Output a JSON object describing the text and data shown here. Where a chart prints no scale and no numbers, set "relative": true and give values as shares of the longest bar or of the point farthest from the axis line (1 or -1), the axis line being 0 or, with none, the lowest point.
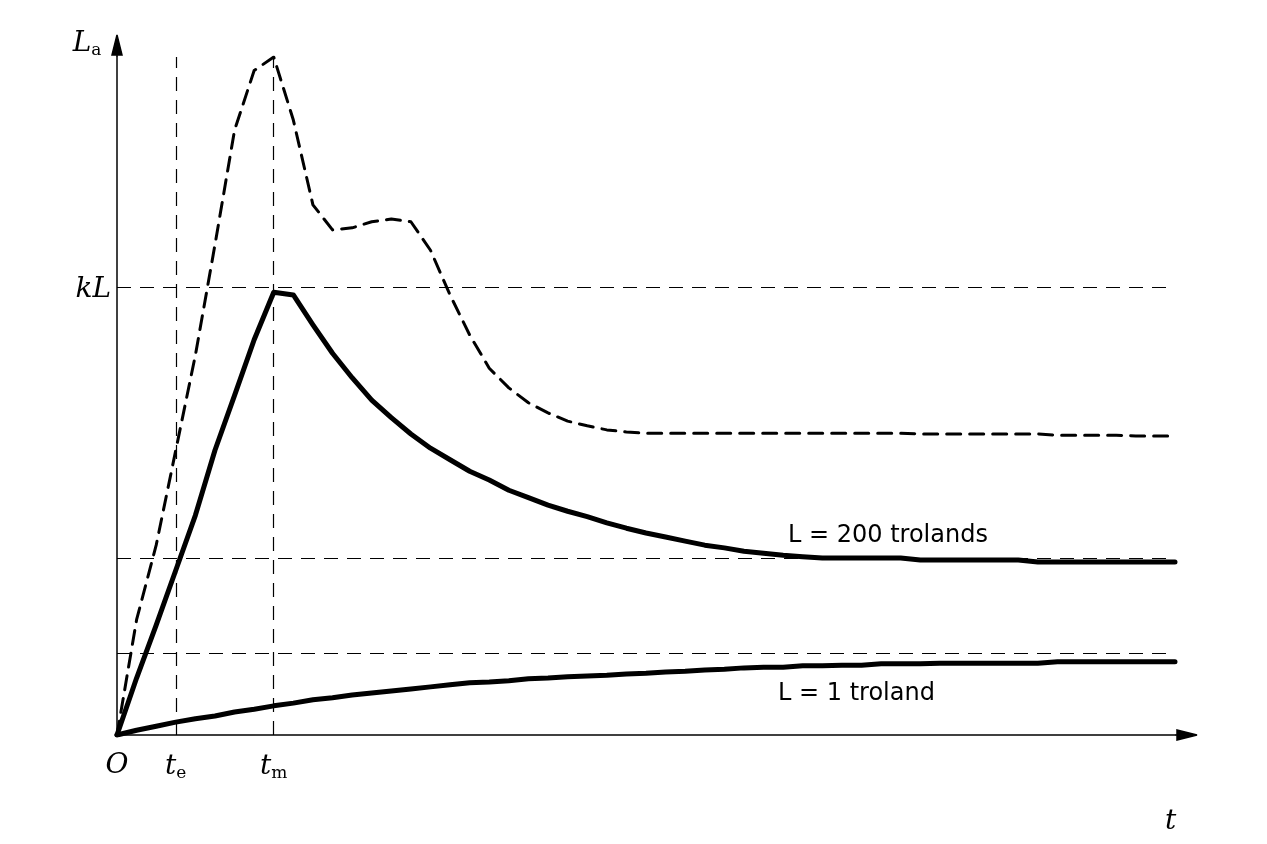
{
  "chart_data": {
    "type": "line",
    "relative": true,
    "xlabel": "t",
    "ylabel": "L$_{a}$",
    "categories": [
      "O",
      null,
      null,
      "t$_{e}$",
      null,
      null,
      null,
      null,
      "t$_{m}$",
      null,
      null,
      null,
      null,
      null,
      null,
      null,
      null,
      null,
      null,
      null,
      null,
      null,
      null,
      null,
      null,
      null,
      null,
      null,
      null,
      null,
      null,
      null,
      null,
      null,
      null,
      null,
      null,
      null,
      null,
      null,
      null,
      null,
      null,
      null,
      null,
      null,
      null,
      null,
      null,
      null,
      null,
      null,
      null,
      null,
      null
    ],
    "grid": false,
    "legend": false,
    "marker": "none",
    "ref_lines": [
      {
        "axis": "y",
        "value": 0.659,
        "label": "kL",
        "line_style": "dashed"
      },
      {
        "axis": "y",
        "value": 0.264,
        "line_style": "dashed"
      },
      {
        "axis": "y",
        "value": 0.124,
        "line_style": "dashed"
      },
      {
        "axis": "x",
        "value": "t$_{e}$",
        "line_style": "dashed"
      },
      {
        "axis": "x",
        "value": "t$_{m}$",
        "line_style": "dashed"
      }
    ],
    "series": [
      {
        "color": "#000000",
        "line_style": "dashed",
        "values": [
          0,
          0.17,
          0.28,
          0.42,
          0.56,
          0.723,
          0.892,
          0.98,
          1,
          0.907,
          0.782,
          0.745,
          0.748,
          0.757,
          0.761,
          0.757,
          0.715,
          0.649,
          0.59,
          0.541,
          0.512,
          0.49,
          0.475,
          0.463,
          0.456,
          0.45,
          0.447,
          0.445,
          0.445,
          0.445,
          0.445,
          0.445,
          0.445,
          0.445,
          0.445,
          0.445,
          0.445,
          0.445,
          0.445,
          0.445,
          0.445,
          0.444,
          0.444,
          0.444,
          0.444,
          0.444,
          0.444,
          0.444,
          0.442,
          0.442,
          0.442,
          0.442,
          0.441,
          0.441,
          0.441
        ]
      },
      {
        "name": "L = 200 trolands",
        "color": "#000000",
        "line_style": "solid",
        "values": [
          0,
          0.084,
          0.162,
          0.243,
          0.324,
          0.42,
          0.501,
          0.583,
          0.653,
          0.649,
          0.605,
          0.563,
          0.527,
          0.494,
          0.468,
          0.444,
          0.423,
          0.406,
          0.389,
          0.376,
          0.361,
          0.35,
          0.339,
          0.33,
          0.322,
          0.313,
          0.305,
          0.298,
          0.292,
          0.286,
          0.28,
          0.276,
          0.271,
          0.268,
          0.265,
          0.263,
          0.261,
          0.261,
          0.261,
          0.261,
          0.261,
          0.258,
          0.258,
          0.258,
          0.258,
          0.258,
          0.258,
          0.255,
          0.255,
          0.255,
          0.255,
          0.255,
          0.255,
          0.255,
          0.255
        ]
      },
      {
        "name": "L = 1 troland",
        "color": "#000000",
        "line_style": "solid",
        "values": [
          0,
          0.007,
          0.013,
          0.019,
          0.024,
          0.028,
          0.034,
          0.038,
          0.043,
          0.047,
          0.052,
          0.055,
          0.059,
          0.062,
          0.065,
          0.068,
          0.071,
          0.074,
          0.077,
          0.078,
          0.08,
          0.083,
          0.084,
          0.086,
          0.087,
          0.088,
          0.09,
          0.091,
          0.093,
          0.094,
          0.096,
          0.097,
          0.099,
          0.1,
          0.1,
          0.102,
          0.102,
          0.103,
          0.103,
          0.105,
          0.105,
          0.105,
          0.106,
          0.106,
          0.106,
          0.106,
          0.106,
          0.106,
          0.108,
          0.108,
          0.108,
          0.108,
          0.108,
          0.108,
          0.108
        ]
      }
    ]
  }
}
